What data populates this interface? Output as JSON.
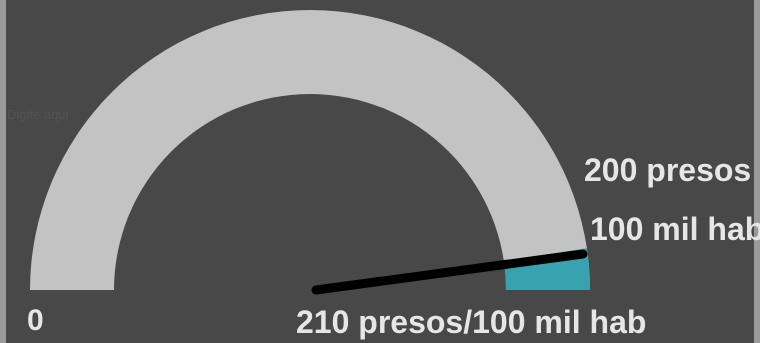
{
  "chart_data": {
    "type": "gauge",
    "min": 0,
    "max": 210,
    "value": 210,
    "threshold": 200,
    "min_label": "0",
    "value_label": "210 presos/100 mil hab",
    "threshold_label": [
      "200 presos /",
      "100 mil hab"
    ],
    "colors": {
      "background": "#484848",
      "track": "#c3c3c3",
      "highlight": "#39a2b0",
      "needle": "#000000",
      "label": "#e6e6e6"
    }
  },
  "watermark": "Digite aqui"
}
